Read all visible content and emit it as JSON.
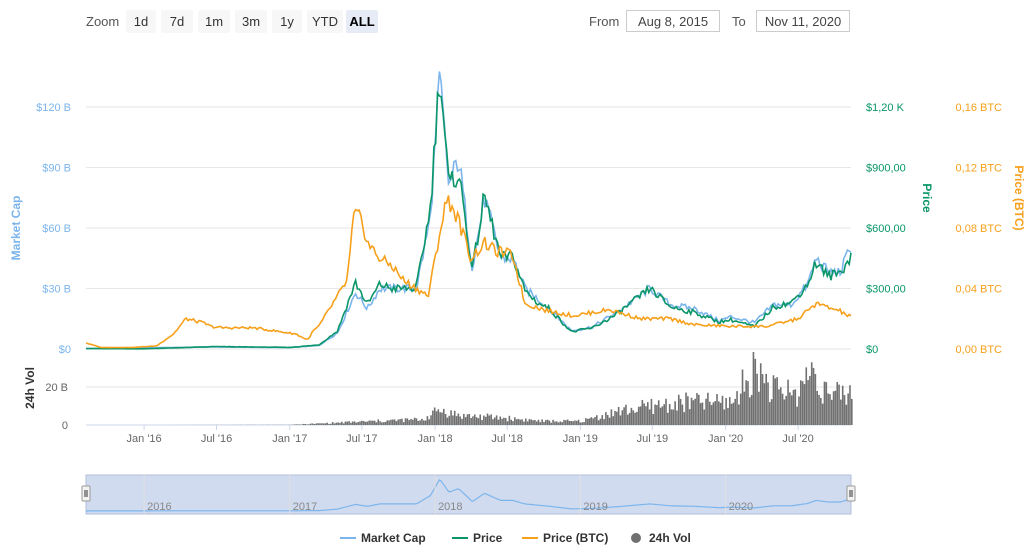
{
  "toolbar": {
    "zoom_label": "Zoom",
    "zoom_buttons": [
      "1d",
      "7d",
      "1m",
      "3m",
      "1y",
      "YTD",
      "ALL"
    ],
    "active_zoom": "ALL",
    "from_label": "From",
    "from_value": "Aug 8, 2015",
    "to_label": "To",
    "to_value": "Nov 11, 2020"
  },
  "colors": {
    "market_cap": "#7cb5ec",
    "price": "#0a9669",
    "price_btc": "#f7a01c",
    "volume": "#707070",
    "navigator_fill": "#d0dbef"
  },
  "chart_data": {
    "type": "line",
    "x_ticks": [
      "Jan '16",
      "Jul '16",
      "Jan '17",
      "Jul '17",
      "Jan '18",
      "Jul '18",
      "Jan '19",
      "Jul '19",
      "Jan '20",
      "Jul '20"
    ],
    "y_axes": {
      "market_cap": {
        "title": "Market Cap",
        "ticks": [
          "$0",
          "$30 B",
          "$60 B",
          "$90 B",
          "$120 B"
        ],
        "range": [
          0,
          120
        ]
      },
      "price": {
        "title": "Price",
        "ticks": [
          "$0",
          "$300,00",
          "$600,00",
          "$900,00",
          "$1,20 K"
        ],
        "range": [
          0,
          1200
        ]
      },
      "price_btc": {
        "title": "Price (BTC)",
        "ticks": [
          "0,00 BTC",
          "0,04 BTC",
          "0,08 BTC",
          "0,12 BTC",
          "0,16 BTC"
        ],
        "range": [
          0,
          0.16
        ]
      },
      "volume": {
        "title": "24h Vol",
        "ticks": [
          "0",
          "20 B"
        ],
        "range": [
          0,
          40
        ]
      }
    },
    "x_range": [
      "2015-08-08",
      "2020-11-11"
    ],
    "series": [
      {
        "name": "Market Cap",
        "unit": "B USD",
        "x": [
          "2015-08-08",
          "2016-01-01",
          "2016-07-01",
          "2017-01-01",
          "2017-03-15",
          "2017-05-01",
          "2017-06-15",
          "2017-07-15",
          "2017-08-15",
          "2017-09-15",
          "2017-10-15",
          "2017-11-15",
          "2017-12-20",
          "2018-01-13",
          "2018-02-05",
          "2018-03-01",
          "2018-04-05",
          "2018-05-05",
          "2018-06-15",
          "2018-07-15",
          "2018-08-15",
          "2018-09-15",
          "2018-10-15",
          "2018-12-10",
          "2019-02-01",
          "2019-04-01",
          "2019-06-25",
          "2019-08-15",
          "2019-10-15",
          "2019-12-15",
          "2020-01-15",
          "2020-03-13",
          "2020-05-01",
          "2020-06-15",
          "2020-07-25",
          "2020-08-15",
          "2020-09-15",
          "2020-10-15",
          "2020-11-11"
        ],
        "values": [
          0.2,
          0.6,
          1.0,
          0.7,
          1.7,
          8,
          28,
          20,
          30,
          30,
          30,
          30,
          65,
          135,
          80,
          95,
          40,
          75,
          45,
          45,
          30,
          25,
          20,
          9,
          11,
          18,
          30,
          22,
          20,
          14,
          16,
          13,
          22,
          22,
          32,
          45,
          38,
          38,
          51
        ]
      },
      {
        "name": "Price",
        "unit": "USD",
        "x": [
          "2015-08-08",
          "2016-01-01",
          "2016-07-01",
          "2017-01-01",
          "2017-03-15",
          "2017-05-01",
          "2017-06-15",
          "2017-07-15",
          "2017-08-15",
          "2017-09-15",
          "2017-10-15",
          "2017-11-15",
          "2017-12-20",
          "2018-01-13",
          "2018-02-05",
          "2018-03-01",
          "2018-04-05",
          "2018-05-05",
          "2018-06-15",
          "2018-07-15",
          "2018-08-15",
          "2018-09-15",
          "2018-10-15",
          "2018-12-10",
          "2019-02-01",
          "2019-04-01",
          "2019-06-25",
          "2019-08-15",
          "2019-10-15",
          "2019-12-15",
          "2020-01-15",
          "2020-03-13",
          "2020-05-01",
          "2020-06-15",
          "2020-07-25",
          "2020-08-15",
          "2020-09-15",
          "2020-10-15",
          "2020-11-11"
        ],
        "values": [
          2,
          1,
          12,
          8,
          20,
          90,
          330,
          220,
          320,
          300,
          300,
          300,
          700,
          1380,
          800,
          880,
          390,
          760,
          450,
          460,
          290,
          230,
          200,
          85,
          105,
          170,
          300,
          210,
          180,
          135,
          145,
          110,
          210,
          230,
          320,
          430,
          360,
          380,
          460
        ]
      },
      {
        "name": "Price (BTC)",
        "unit": "BTC",
        "x": [
          "2015-08-08",
          "2015-09-15",
          "2015-12-01",
          "2016-02-01",
          "2016-03-15",
          "2016-04-15",
          "2016-06-01",
          "2016-06-15",
          "2016-07-15",
          "2016-10-01",
          "2017-01-15",
          "2017-02-15",
          "2017-03-01",
          "2017-03-15",
          "2017-05-01",
          "2017-05-25",
          "2017-06-12",
          "2017-07-01",
          "2017-07-15",
          "2017-08-15",
          "2017-09-15",
          "2017-10-15",
          "2017-11-15",
          "2017-12-15",
          "2018-01-15",
          "2018-02-01",
          "2018-03-01",
          "2018-04-01",
          "2018-05-05",
          "2018-06-01",
          "2018-07-15",
          "2018-08-15",
          "2018-10-15",
          "2018-12-15",
          "2019-03-15",
          "2019-06-01",
          "2019-08-15",
          "2019-10-15",
          "2020-01-15",
          "2020-04-15",
          "2020-07-01",
          "2020-08-15",
          "2020-10-15",
          "2020-11-11"
        ],
        "values": [
          0.004,
          0.001,
          0.001,
          0.002,
          0.01,
          0.02,
          0.017,
          0.015,
          0.014,
          0.014,
          0.01,
          0.006,
          0.012,
          0.015,
          0.035,
          0.045,
          0.09,
          0.085,
          0.07,
          0.06,
          0.055,
          0.045,
          0.04,
          0.035,
          0.08,
          0.1,
          0.085,
          0.06,
          0.07,
          0.065,
          0.062,
          0.03,
          0.025,
          0.022,
          0.026,
          0.02,
          0.02,
          0.016,
          0.015,
          0.015,
          0.02,
          0.03,
          0.025,
          0.021
        ]
      },
      {
        "name": "24h Vol",
        "unit": "B USD",
        "x": [
          "2015-08-08",
          "2016-01-01",
          "2017-01-01",
          "2017-06-01",
          "2017-12-01",
          "2018-01-10",
          "2018-03-01",
          "2018-06-01",
          "2018-10-01",
          "2019-01-01",
          "2019-04-01",
          "2019-07-01",
          "2019-10-01",
          "2020-01-15",
          "2020-03-13",
          "2020-05-01",
          "2020-07-01",
          "2020-08-01",
          "2020-09-15",
          "2020-11-11"
        ],
        "values": [
          0,
          0,
          0.1,
          1.5,
          3,
          8,
          5,
          4,
          2,
          2,
          7,
          10,
          12,
          12,
          30,
          18,
          17,
          30,
          15,
          17
        ]
      }
    ],
    "navigator_ticks": [
      "2016",
      "2017",
      "2018",
      "2019",
      "2020"
    ],
    "legend": [
      "Market Cap",
      "Price",
      "Price (BTC)",
      "24h Vol"
    ],
    "legend_position": "bottom-center"
  }
}
